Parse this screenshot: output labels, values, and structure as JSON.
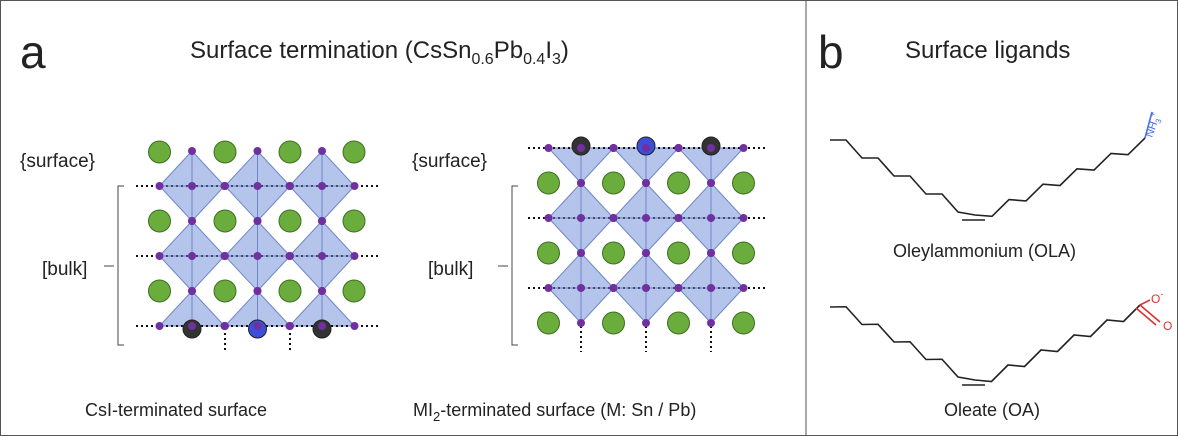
{
  "panel_a": {
    "label": "a",
    "title": [
      "Surface termination (CsSn",
      "0.6",
      "Pb",
      "0.4",
      "I",
      "3",
      ")"
    ],
    "structures": [
      {
        "surface_label": "{surface}",
        "bulk_label": "[bulk]",
        "caption": [
          "CsI-terminated surface"
        ]
      },
      {
        "surface_label": "{surface}",
        "bulk_label": "[bulk]",
        "caption": [
          "MI",
          "2",
          "-terminated surface (M: Sn / Pb)"
        ]
      }
    ]
  },
  "panel_b": {
    "label": "b",
    "title": "Surface ligands",
    "ligands": [
      {
        "name": "Oleylammonium (OLA)",
        "group": [
          "NH",
          "3",
          "+"
        ]
      },
      {
        "name": "Oleate (OA)",
        "group": [
          "O",
          "-",
          "O"
        ]
      }
    ]
  }
}
